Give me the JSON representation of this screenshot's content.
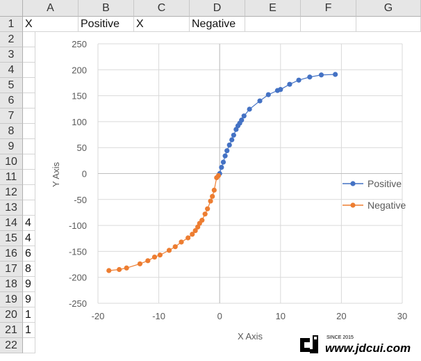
{
  "columns": [
    "A",
    "B",
    "C",
    "D",
    "E",
    "F",
    "G"
  ],
  "rows": [
    "1",
    "2",
    "3",
    "4",
    "5",
    "6",
    "7",
    "8",
    "9",
    "10",
    "11",
    "12",
    "13",
    "14",
    "15",
    "16",
    "17",
    "18",
    "19",
    "20",
    "21",
    "22"
  ],
  "cells": {
    "A1": "X",
    "B1": "Positive",
    "C1": "X",
    "D1": "Negative"
  },
  "partial_col_a": [
    "4",
    "4",
    "6",
    "8",
    "9",
    "9",
    "1",
    "1"
  ],
  "colors": {
    "positive": "#4472C4",
    "negative": "#ED7D31",
    "grid": "#d9d9d9",
    "axis": "#bfbfbf"
  },
  "chart_data": {
    "type": "scatter",
    "xlabel": "X Axis",
    "ylabel": "Y Axis",
    "xlim": [
      -20,
      30
    ],
    "ylim": [
      -250,
      250
    ],
    "xticks": [
      "-20",
      "-10",
      "0",
      "10",
      "20",
      "30"
    ],
    "yticks": [
      "250",
      "200",
      "150",
      "100",
      "50",
      "0",
      "-50",
      "-100",
      "-150",
      "-200",
      "-250"
    ],
    "grid": true,
    "legend_position": "right",
    "series": [
      {
        "name": "Positive",
        "color": "#4472C4",
        "x": [
          0,
          0.3,
          0.6,
          0.9,
          1.2,
          1.6,
          2.0,
          2.3,
          2.7,
          3.0,
          3.3,
          3.6,
          4.0,
          4.9,
          6.6,
          8.0,
          9.5,
          10.0,
          11.5,
          13.0,
          14.8,
          16.7,
          19.0
        ],
        "y": [
          0,
          12,
          22,
          34,
          44,
          55,
          65,
          74,
          85,
          92,
          97,
          103,
          111,
          124,
          140,
          152,
          160,
          162,
          172,
          180,
          186,
          190,
          191
        ]
      },
      {
        "name": "Negative",
        "color": "#ED7D31",
        "x": [
          -0.2,
          -0.5,
          -0.9,
          -1.2,
          -1.5,
          -2.0,
          -2.4,
          -2.9,
          -3.3,
          -3.6,
          -4.0,
          -4.5,
          -5.2,
          -6.3,
          -7.3,
          -8.3,
          -9.8,
          -10.7,
          -11.8,
          -13.1,
          -15.3,
          -16.5,
          -18.2
        ],
        "y": [
          -4,
          -8,
          -32,
          -44,
          -53,
          -68,
          -78,
          -90,
          -96,
          -103,
          -110,
          -117,
          -124,
          -132,
          -141,
          -148,
          -157,
          -161,
          -168,
          -174,
          -182,
          -185,
          -187
        ]
      }
    ]
  },
  "watermark": {
    "brand": "jd",
    "small": "SINCE 2015",
    "url": "www.jdcui.com"
  }
}
